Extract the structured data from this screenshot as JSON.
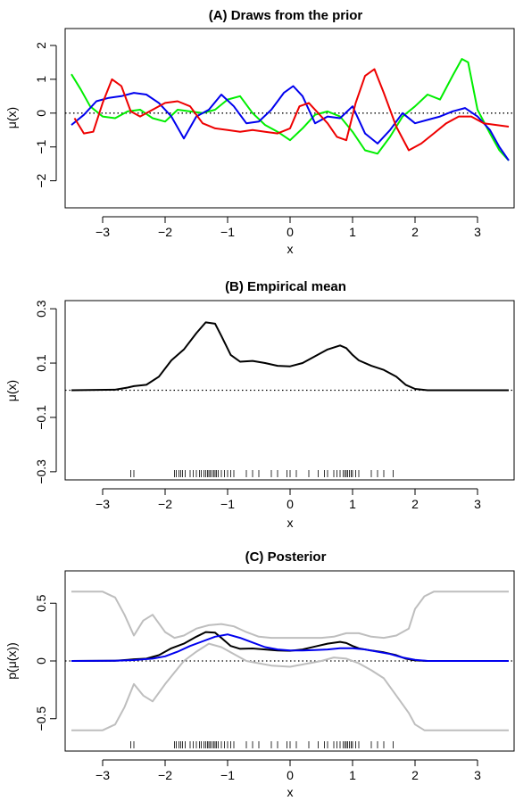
{
  "chart_data": [
    {
      "type": "line",
      "title": "(A) Draws from the prior",
      "xlabel": "x",
      "ylabel": "μ(x)",
      "xlim": [
        -3.6,
        3.6
      ],
      "ylim": [
        -2.8,
        2.5
      ],
      "x_ticks": [
        -3,
        -2,
        -1,
        0,
        1,
        2,
        3
      ],
      "y_ticks": [
        -2,
        -1,
        0,
        1,
        2
      ],
      "reference_line": {
        "y": 0,
        "style": "dotted"
      },
      "series": [
        {
          "color": "#00ee00",
          "x": [
            -3.5,
            -3.35,
            -3.2,
            -3.0,
            -2.8,
            -2.6,
            -2.4,
            -2.2,
            -2.0,
            -1.8,
            -1.6,
            -1.4,
            -1.2,
            -1.0,
            -0.8,
            -0.6,
            -0.4,
            -0.2,
            0.0,
            0.2,
            0.4,
            0.6,
            0.8,
            1.0,
            1.2,
            1.4,
            1.6,
            1.8,
            2.0,
            2.2,
            2.4,
            2.6,
            2.75,
            2.85,
            3.0,
            3.2,
            3.35,
            3.5
          ],
          "y": [
            1.15,
            0.7,
            0.2,
            -0.1,
            -0.15,
            0.05,
            0.1,
            -0.15,
            -0.25,
            0.1,
            0.05,
            0.0,
            0.1,
            0.4,
            0.5,
            0.0,
            -0.35,
            -0.55,
            -0.8,
            -0.45,
            -0.05,
            0.05,
            -0.1,
            -0.55,
            -1.1,
            -1.2,
            -0.7,
            -0.1,
            0.2,
            0.55,
            0.4,
            1.1,
            1.6,
            1.5,
            0.1,
            -0.6,
            -1.1,
            -1.4
          ]
        },
        {
          "color": "#0000ee",
          "x": [
            -3.5,
            -3.3,
            -3.1,
            -2.9,
            -2.7,
            -2.5,
            -2.3,
            -2.1,
            -1.9,
            -1.7,
            -1.5,
            -1.3,
            -1.1,
            -0.9,
            -0.7,
            -0.5,
            -0.3,
            -0.1,
            0.05,
            0.2,
            0.4,
            0.6,
            0.8,
            1.0,
            1.2,
            1.4,
            1.6,
            1.8,
            2.0,
            2.2,
            2.4,
            2.6,
            2.8,
            3.0,
            3.2,
            3.35,
            3.5
          ],
          "y": [
            -0.35,
            -0.05,
            0.35,
            0.45,
            0.5,
            0.6,
            0.55,
            0.3,
            -0.1,
            -0.75,
            -0.1,
            0.1,
            0.55,
            0.2,
            -0.3,
            -0.25,
            0.1,
            0.6,
            0.8,
            0.5,
            -0.3,
            -0.1,
            -0.15,
            0.2,
            -0.6,
            -0.9,
            -0.5,
            0.0,
            -0.3,
            -0.2,
            -0.1,
            0.05,
            0.15,
            -0.1,
            -0.5,
            -1.0,
            -1.4
          ]
        },
        {
          "color": "#ee0000",
          "x": [
            -3.45,
            -3.3,
            -3.15,
            -3.0,
            -2.85,
            -2.7,
            -2.55,
            -2.4,
            -2.2,
            -2.0,
            -1.8,
            -1.6,
            -1.4,
            -1.2,
            -1.0,
            -0.8,
            -0.6,
            -0.4,
            -0.2,
            0.0,
            0.15,
            0.3,
            0.45,
            0.6,
            0.75,
            0.9,
            1.05,
            1.2,
            1.35,
            1.5,
            1.7,
            1.9,
            2.1,
            2.3,
            2.5,
            2.7,
            2.9,
            3.1,
            3.3,
            3.5
          ],
          "y": [
            -0.15,
            -0.6,
            -0.55,
            0.3,
            1.0,
            0.8,
            0.05,
            -0.1,
            0.1,
            0.3,
            0.35,
            0.2,
            -0.3,
            -0.45,
            -0.5,
            -0.55,
            -0.5,
            -0.55,
            -0.6,
            -0.45,
            0.2,
            0.3,
            0.0,
            -0.3,
            -0.7,
            -0.8,
            0.3,
            1.1,
            1.3,
            0.6,
            -0.4,
            -1.1,
            -0.9,
            -0.6,
            -0.3,
            -0.1,
            -0.1,
            -0.3,
            -0.35,
            -0.4
          ]
        }
      ]
    },
    {
      "type": "line",
      "title": "(B) Empirical mean",
      "xlabel": "x",
      "ylabel": "μ(x)",
      "xlim": [
        -3.6,
        3.6
      ],
      "ylim": [
        -0.33,
        0.33
      ],
      "x_ticks": [
        -3,
        -2,
        -1,
        0,
        1,
        2,
        3
      ],
      "y_ticks": [
        -0.3,
        -0.1,
        0.1,
        0.3
      ],
      "reference_line": {
        "y": 0,
        "style": "dotted"
      },
      "series": [
        {
          "color": "#000000",
          "x": [
            -3.5,
            -2.8,
            -2.6,
            -2.5,
            -2.3,
            -2.1,
            -1.9,
            -1.7,
            -1.5,
            -1.35,
            -1.2,
            -1.1,
            -0.95,
            -0.8,
            -0.6,
            -0.4,
            -0.2,
            0.0,
            0.2,
            0.4,
            0.6,
            0.8,
            0.9,
            1.0,
            1.1,
            1.3,
            1.5,
            1.7,
            1.85,
            2.0,
            2.2,
            3.5
          ],
          "y": [
            0.0,
            0.002,
            0.01,
            0.015,
            0.02,
            0.05,
            0.11,
            0.15,
            0.21,
            0.25,
            0.245,
            0.2,
            0.13,
            0.105,
            0.108,
            0.1,
            0.09,
            0.088,
            0.1,
            0.125,
            0.15,
            0.165,
            0.155,
            0.13,
            0.11,
            0.09,
            0.075,
            0.05,
            0.02,
            0.005,
            0.0,
            0.0
          ]
        }
      ],
      "rug": [
        -2.55,
        -2.5,
        -1.85,
        -1.82,
        -1.78,
        -1.75,
        -1.72,
        -1.68,
        -1.6,
        -1.55,
        -1.5,
        -1.45,
        -1.42,
        -1.38,
        -1.35,
        -1.32,
        -1.3,
        -1.28,
        -1.25,
        -1.22,
        -1.2,
        -1.18,
        -1.15,
        -1.1,
        -1.05,
        -1.0,
        -0.95,
        -0.9,
        -0.7,
        -0.6,
        -0.5,
        -0.3,
        -0.2,
        -0.05,
        0.0,
        0.1,
        0.3,
        0.45,
        0.55,
        0.6,
        0.7,
        0.75,
        0.8,
        0.85,
        0.88,
        0.9,
        0.92,
        0.95,
        0.98,
        1.0,
        1.05,
        1.1,
        1.3,
        1.4,
        1.5,
        1.65
      ]
    },
    {
      "type": "line",
      "title": "(C) Posterior",
      "xlabel": "x",
      "ylabel": "p(μ(x))",
      "xlim": [
        -3.6,
        3.6
      ],
      "ylim": [
        -0.78,
        0.78
      ],
      "x_ticks": [
        -3,
        -2,
        -1,
        0,
        1,
        2,
        3
      ],
      "y_ticks": [
        -0.5,
        0.0,
        0.5
      ],
      "reference_line": {
        "y": 0,
        "style": "dotted"
      },
      "series": [
        {
          "color": "#bebebe",
          "x": [
            -3.5,
            -3.0,
            -2.8,
            -2.65,
            -2.5,
            -2.35,
            -2.2,
            -2.0,
            -1.85,
            -1.7,
            -1.5,
            -1.3,
            -1.1,
            -0.9,
            -0.7,
            -0.5,
            -0.3,
            0.0,
            0.3,
            0.5,
            0.7,
            0.9,
            1.1,
            1.3,
            1.5,
            1.7,
            1.9,
            2.0,
            2.15,
            2.3,
            2.6,
            3.5
          ],
          "y": [
            0.6,
            0.6,
            0.55,
            0.4,
            0.22,
            0.35,
            0.4,
            0.25,
            0.2,
            0.22,
            0.28,
            0.31,
            0.32,
            0.3,
            0.25,
            0.21,
            0.2,
            0.2,
            0.2,
            0.2,
            0.21,
            0.24,
            0.24,
            0.21,
            0.2,
            0.22,
            0.28,
            0.45,
            0.56,
            0.6,
            0.6,
            0.6
          ]
        },
        {
          "color": "#bebebe",
          "x": [
            -3.5,
            -3.0,
            -2.8,
            -2.65,
            -2.5,
            -2.35,
            -2.2,
            -2.0,
            -1.85,
            -1.7,
            -1.5,
            -1.3,
            -1.1,
            -0.9,
            -0.7,
            -0.5,
            -0.3,
            0.0,
            0.3,
            0.5,
            0.7,
            0.9,
            1.1,
            1.3,
            1.5,
            1.7,
            1.9,
            2.0,
            2.15,
            2.3,
            2.6,
            3.5
          ],
          "y": [
            -0.6,
            -0.6,
            -0.55,
            -0.4,
            -0.2,
            -0.3,
            -0.35,
            -0.2,
            -0.1,
            0.0,
            0.08,
            0.15,
            0.12,
            0.06,
            0.0,
            -0.02,
            -0.04,
            -0.05,
            -0.02,
            0.0,
            0.03,
            0.02,
            -0.02,
            -0.08,
            -0.15,
            -0.3,
            -0.45,
            -0.55,
            -0.6,
            -0.6,
            -0.6,
            -0.6
          ]
        },
        {
          "color": "#000000",
          "x": [
            -3.5,
            -2.8,
            -2.6,
            -2.5,
            -2.3,
            -2.1,
            -1.9,
            -1.7,
            -1.5,
            -1.35,
            -1.2,
            -1.1,
            -0.95,
            -0.8,
            -0.6,
            -0.4,
            -0.2,
            0.0,
            0.2,
            0.4,
            0.6,
            0.8,
            0.9,
            1.0,
            1.1,
            1.3,
            1.5,
            1.7,
            1.85,
            2.0,
            2.2,
            3.5
          ],
          "y": [
            0.0,
            0.002,
            0.01,
            0.015,
            0.02,
            0.05,
            0.11,
            0.15,
            0.21,
            0.25,
            0.245,
            0.2,
            0.13,
            0.105,
            0.108,
            0.1,
            0.09,
            0.088,
            0.1,
            0.125,
            0.15,
            0.165,
            0.155,
            0.13,
            0.11,
            0.09,
            0.075,
            0.05,
            0.02,
            0.005,
            0.0,
            0.0
          ]
        },
        {
          "color": "#0000ee",
          "x": [
            -3.5,
            -2.8,
            -2.5,
            -2.2,
            -2.0,
            -1.8,
            -1.6,
            -1.4,
            -1.2,
            -1.0,
            -0.8,
            -0.6,
            -0.4,
            -0.2,
            0.0,
            0.2,
            0.4,
            0.6,
            0.8,
            1.0,
            1.2,
            1.4,
            1.6,
            1.8,
            2.0,
            2.2,
            3.5
          ],
          "y": [
            0.0,
            0.002,
            0.008,
            0.02,
            0.04,
            0.08,
            0.13,
            0.17,
            0.21,
            0.23,
            0.2,
            0.16,
            0.12,
            0.1,
            0.09,
            0.09,
            0.095,
            0.1,
            0.11,
            0.11,
            0.1,
            0.08,
            0.06,
            0.03,
            0.01,
            0.0,
            0.0
          ]
        }
      ],
      "rug": [
        -2.55,
        -2.5,
        -1.85,
        -1.82,
        -1.78,
        -1.75,
        -1.72,
        -1.68,
        -1.6,
        -1.55,
        -1.5,
        -1.45,
        -1.42,
        -1.38,
        -1.35,
        -1.32,
        -1.3,
        -1.28,
        -1.25,
        -1.22,
        -1.2,
        -1.18,
        -1.15,
        -1.1,
        -1.05,
        -1.0,
        -0.95,
        -0.9,
        -0.7,
        -0.6,
        -0.5,
        -0.3,
        -0.2,
        -0.05,
        0.0,
        0.1,
        0.3,
        0.45,
        0.55,
        0.6,
        0.7,
        0.75,
        0.8,
        0.85,
        0.88,
        0.9,
        0.92,
        0.95,
        0.98,
        1.0,
        1.05,
        1.1,
        1.3,
        1.4,
        1.5,
        1.65
      ]
    }
  ]
}
